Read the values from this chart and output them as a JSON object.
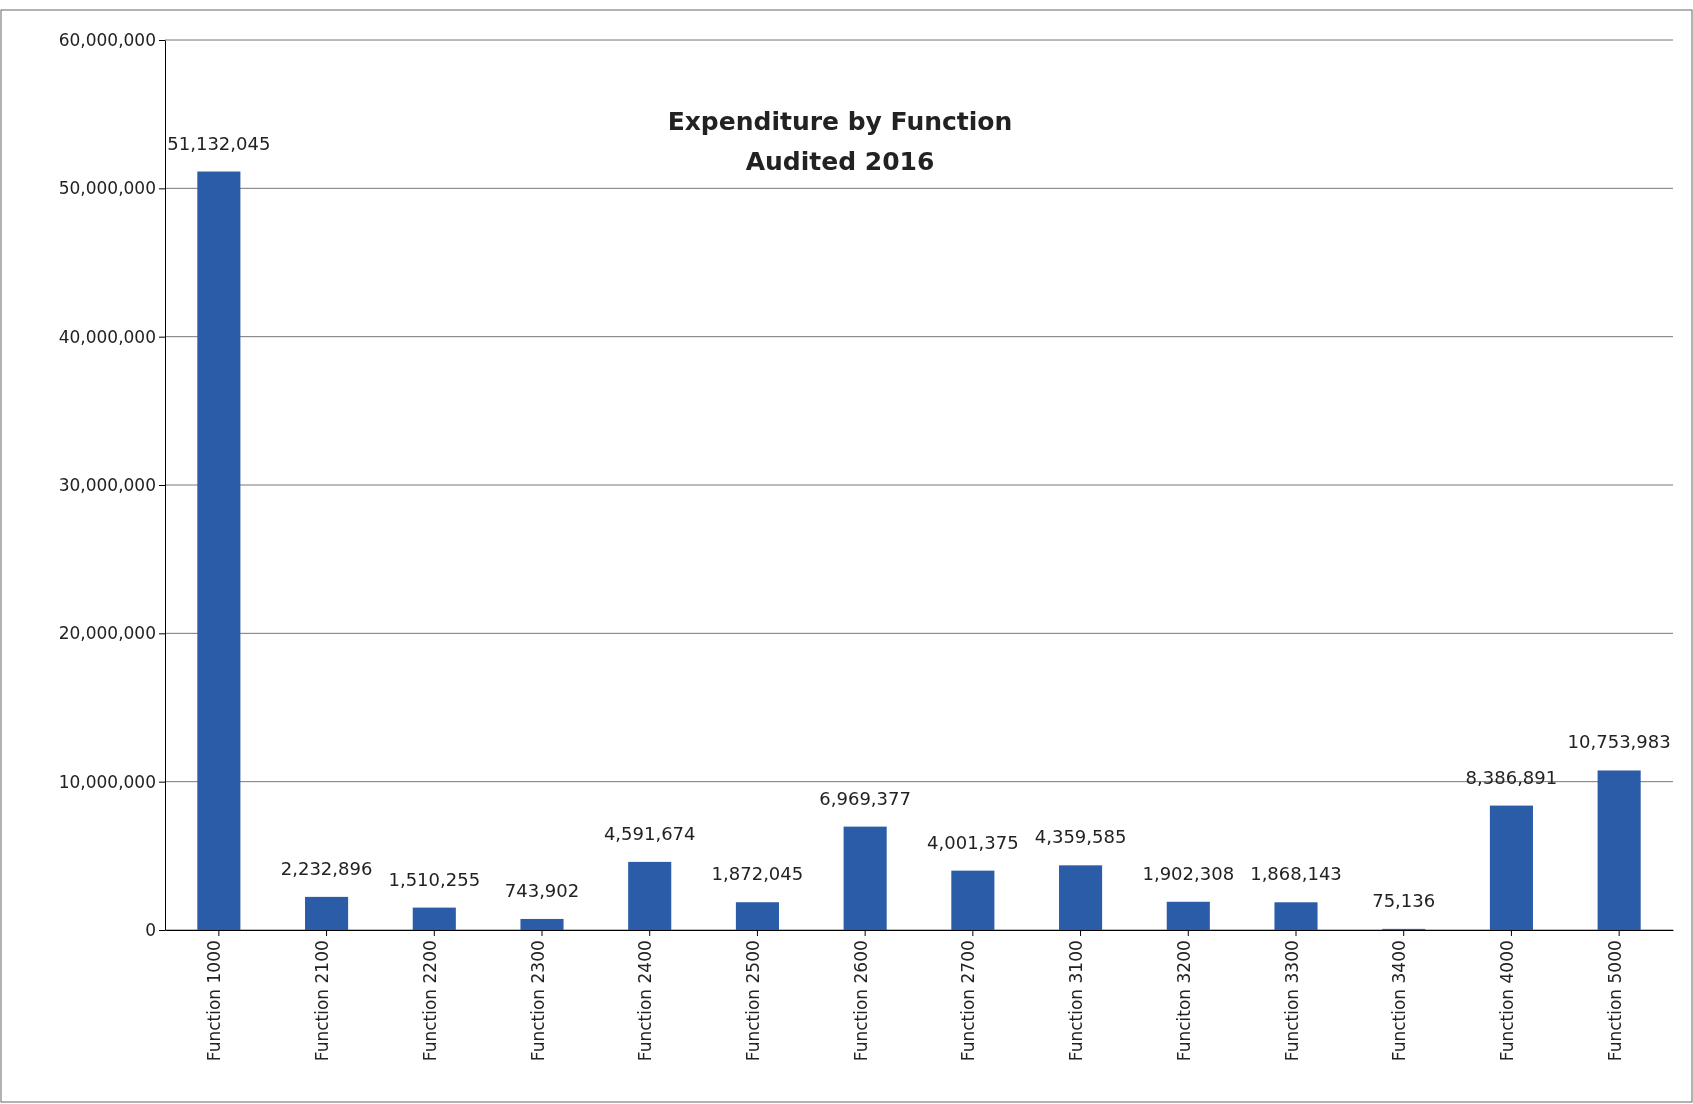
{
  "chart_data": {
    "type": "bar",
    "title": "Expenditure by Function\nAudited 2016",
    "categories": [
      "Function 1000",
      "Function 2100",
      "Function 2200",
      "Function 2300",
      "Function 2400",
      "Function 2500",
      "Function 2600",
      "Function 2700",
      "Function 3100",
      "Funciton 3200",
      "Function 3300",
      "Function 3400",
      "Function 4000",
      "Function 5000"
    ],
    "values": [
      51132045,
      2232896,
      1510255,
      743902,
      4591674,
      1872045,
      6969377,
      4001375,
      4359585,
      1902308,
      1868143,
      75136,
      8386891,
      10753983
    ],
    "color": "#2a5ca8",
    "ylim": [
      0,
      60000000
    ],
    "yticks": [
      {
        "value": 0,
        "label": "0"
      },
      {
        "value": 10000000,
        "label": "10,000,000"
      },
      {
        "value": 20000000,
        "label": "20,000,000"
      },
      {
        "value": 30000000,
        "label": "30,000,000"
      },
      {
        "value": 40000000,
        "label": "40,000,000"
      },
      {
        "value": 50000000,
        "label": "50,000,000"
      },
      {
        "value": 60000000,
        "label": "60,000,000"
      }
    ],
    "value_labels": [
      "51,132,045",
      "2,232,896",
      "1,510,255",
      "743,902",
      "4,591,674",
      "1,872,045",
      "6,969,377",
      "4,001,375",
      "4,359,585",
      "1,902,308",
      "1,868,143",
      "75,136",
      "8,386,891",
      "10,753,983"
    ],
    "grid": "y"
  }
}
